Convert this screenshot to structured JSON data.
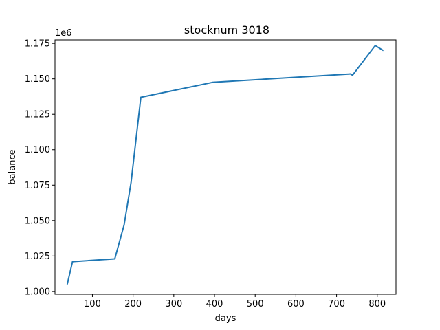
{
  "chart_data": {
    "type": "line",
    "title": "stocknum 3018",
    "xlabel": "days",
    "ylabel": "balance",
    "y_offset_label": "1e6",
    "xlim": [
      8,
      846
    ],
    "ylim": [
      0.998,
      1.1775
    ],
    "x_ticks": [
      100,
      200,
      300,
      400,
      500,
      600,
      700,
      800
    ],
    "x_tick_labels": [
      "100",
      "200",
      "300",
      "400",
      "500",
      "600",
      "700",
      "800"
    ],
    "y_ticks": [
      1.0,
      1.025,
      1.05,
      1.075,
      1.1,
      1.125,
      1.15,
      1.175
    ],
    "y_tick_labels": [
      "1.000",
      "1.025",
      "1.050",
      "1.075",
      "1.100",
      "1.125",
      "1.150",
      "1.175"
    ],
    "grid": false,
    "series": [
      {
        "color": "#1f77b4",
        "x": [
          38,
          51,
          155,
          178,
          195,
          219,
          395,
          735,
          739,
          795,
          815
        ],
        "y": [
          1.005,
          1.021,
          1.023,
          1.047,
          1.077,
          1.137,
          1.1475,
          1.1535,
          1.1525,
          1.1735,
          1.17
        ]
      }
    ]
  }
}
